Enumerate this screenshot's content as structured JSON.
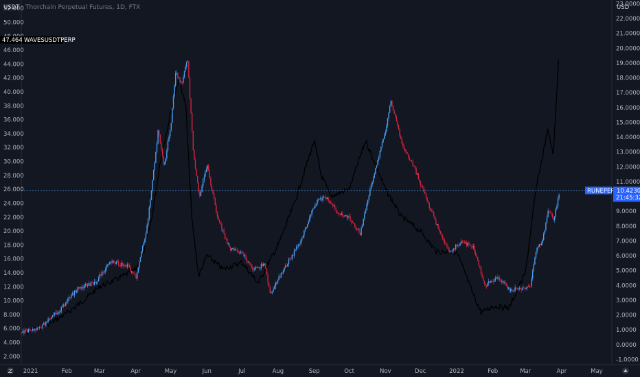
{
  "header": {
    "title": "Thorchain Perpetual Futures, 1D, FTX"
  },
  "axes": {
    "left_unit": "USDT",
    "right_unit": "USD",
    "left_ticks": [
      "2.000",
      "4.000",
      "6.000",
      "8.000",
      "10.000",
      "12.000",
      "14.000",
      "16.000",
      "18.000",
      "20.000",
      "22.000",
      "24.000",
      "26.000",
      "28.000",
      "30.000",
      "32.000",
      "34.000",
      "36.000",
      "38.000",
      "40.000",
      "42.000",
      "44.000",
      "46.000",
      "48.000",
      "50.000",
      "52.000"
    ],
    "right_ticks": [
      "-1.0000",
      "0.0000",
      "1.0000",
      "2.0000",
      "3.0000",
      "4.0000",
      "5.0000",
      "6.0000",
      "7.0000",
      "8.0000",
      "9.0000",
      "10.0000",
      "11.0000",
      "12.0000",
      "13.0000",
      "14.0000",
      "15.0000",
      "16.0000",
      "17.0000",
      "18.0000",
      "19.0000",
      "20.0000",
      "21.0000",
      "22.0000",
      "23.0000"
    ],
    "x_labels": [
      "2021",
      "Feb",
      "Mar",
      "Apr",
      "May",
      "Jun",
      "Jul",
      "Aug",
      "Sep",
      "Oct",
      "Nov",
      "Dec",
      "2022",
      "Feb",
      "Mar",
      "Apr",
      "May"
    ]
  },
  "labels": {
    "left_symbol": "WAVESUSDTPERP",
    "left_value": "47.464",
    "right_symbol": "RUNEPERP",
    "right_value": "10.4230",
    "right_countdown": "21:45:32"
  },
  "icons": {
    "left_corner": "tradingview-logo-icon",
    "right_corner": "settings-icon"
  },
  "colors": {
    "background": "#131722",
    "up": "#4a9ff5",
    "down": "#d7233f",
    "line": "#000000",
    "last_tag": "#2962ff",
    "left_tag": "#000000"
  },
  "chart_data": {
    "type": "line",
    "x_range": [
      "2020-12-24",
      "2022-05-14"
    ],
    "ylim_left": [
      0.8,
      53.2
    ],
    "ylim_right": [
      -1.35,
      23.25
    ],
    "series": [
      {
        "name": "WAVESUSDTPERP",
        "axis": "left",
        "x": [
          "2020-12-24",
          "2021-01-15",
          "2021-02-01",
          "2021-02-15",
          "2021-03-01",
          "2021-03-15",
          "2021-04-01",
          "2021-04-08",
          "2021-04-15",
          "2021-04-22",
          "2021-05-01",
          "2021-05-08",
          "2021-05-14",
          "2021-05-19",
          "2021-05-25",
          "2021-06-01",
          "2021-06-15",
          "2021-07-01",
          "2021-07-15",
          "2021-08-01",
          "2021-08-15",
          "2021-09-01",
          "2021-09-07",
          "2021-09-15",
          "2021-10-01",
          "2021-10-15",
          "2021-11-01",
          "2021-11-15",
          "2021-12-01",
          "2021-12-15",
          "2022-01-01",
          "2022-01-15",
          "2022-01-22",
          "2022-02-01",
          "2022-02-15",
          "2022-03-01",
          "2022-03-10",
          "2022-03-20",
          "2022-03-25",
          "2022-03-30"
        ],
        "values": [
          5.2,
          6.5,
          8.2,
          10.0,
          12.0,
          13.0,
          14.5,
          17.0,
          22.0,
          30.0,
          37.0,
          42.0,
          38.0,
          22.0,
          13.5,
          16.5,
          14.5,
          15.5,
          12.5,
          18.0,
          24.0,
          33.0,
          28.0,
          25.0,
          26.0,
          33.0,
          26.0,
          22.0,
          20.0,
          17.0,
          17.0,
          11.0,
          8.3,
          9.2,
          9.0,
          14.0,
          26.0,
          34.5,
          31.0,
          47.0
        ]
      },
      {
        "name": "RUNEPERP",
        "axis": "right",
        "x": [
          "2020-12-24",
          "2021-01-10",
          "2021-01-25",
          "2021-02-10",
          "2021-02-25",
          "2021-03-10",
          "2021-03-25",
          "2021-04-01",
          "2021-04-10",
          "2021-04-15",
          "2021-04-20",
          "2021-04-25",
          "2021-05-01",
          "2021-05-05",
          "2021-05-10",
          "2021-05-15",
          "2021-05-20",
          "2021-05-25",
          "2021-06-01",
          "2021-06-10",
          "2021-06-20",
          "2021-07-01",
          "2021-07-10",
          "2021-07-20",
          "2021-07-25",
          "2021-08-05",
          "2021-08-20",
          "2021-09-01",
          "2021-09-10",
          "2021-09-20",
          "2021-10-01",
          "2021-10-10",
          "2021-10-20",
          "2021-11-01",
          "2021-11-05",
          "2021-11-15",
          "2021-11-25",
          "2021-12-05",
          "2021-12-15",
          "2021-12-25",
          "2022-01-05",
          "2022-01-15",
          "2022-01-25",
          "2022-02-05",
          "2022-02-15",
          "2022-02-25",
          "2022-03-05",
          "2022-03-10",
          "2022-03-15",
          "2022-03-20",
          "2022-03-25",
          "2022-03-30"
        ],
        "values": [
          0.85,
          1.2,
          2.3,
          3.8,
          4.2,
          5.6,
          5.3,
          4.5,
          7.8,
          11.0,
          14.5,
          12.0,
          15.0,
          18.5,
          17.5,
          19.3,
          13.0,
          10.0,
          12.0,
          8.5,
          6.5,
          6.2,
          5.0,
          5.5,
          3.4,
          5.0,
          7.0,
          9.5,
          10.0,
          9.0,
          8.5,
          7.5,
          11.0,
          14.5,
          16.5,
          13.5,
          12.0,
          10.0,
          8.0,
          6.2,
          7.0,
          6.5,
          4.0,
          4.5,
          3.7,
          3.8,
          4.0,
          6.5,
          7.0,
          9.0,
          8.5,
          10.4
        ]
      }
    ]
  }
}
